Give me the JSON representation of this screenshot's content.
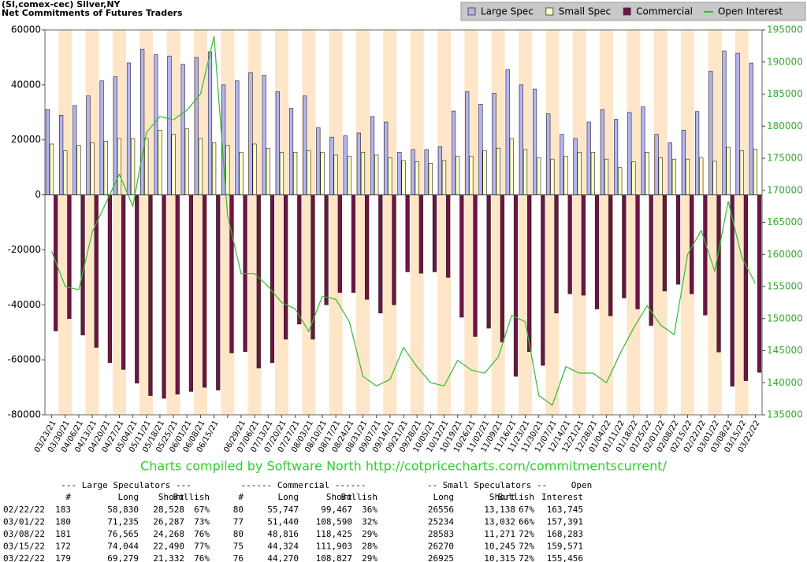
{
  "chart_data": {
    "type": "bar",
    "title": "(SI,comex-cec) Silver,NY",
    "subtitle": "Net Commitments of Futures Traders",
    "footer": "Charts compiled by Software North  http://cotpricecharts.com/commitmentscurrent/",
    "categories": [
      "03/23/21",
      "03/30/21",
      "04/06/21",
      "04/13/21",
      "04/20/21",
      "04/27/21",
      "05/04/21",
      "05/11/21",
      "05/18/21",
      "05/25/21",
      "06/01/21",
      "06/08/21",
      "06/15/21",
      null,
      "06/29/21",
      "07/06/21",
      "07/13/21",
      "07/20/21",
      "07/27/21",
      "08/03/21",
      "08/10/21",
      "08/17/21",
      "08/24/21",
      "08/31/21",
      "09/07/21",
      "09/14/21",
      "09/21/21",
      "09/28/21",
      "10/05/21",
      "10/12/21",
      "10/19/21",
      "10/26/21",
      "11/02/21",
      "11/09/21",
      "11/16/21",
      "11/23/21",
      "11/30/21",
      "12/07/21",
      "12/14/21",
      "12/21/21",
      "12/28/21",
      "01/04/22",
      "01/11/22",
      "01/18/22",
      "01/25/22",
      "02/01/22",
      "02/08/22",
      "02/15/22",
      "02/22/22",
      "03/01/22",
      "03/08/22",
      "03/15/22",
      "03/22/22"
    ],
    "ylim": [
      -80000,
      60000
    ],
    "yticks": [
      -80000,
      -60000,
      -40000,
      -20000,
      0,
      20000,
      40000,
      60000
    ],
    "y2lim": [
      135000,
      195000
    ],
    "y2ticks": [
      135000,
      140000,
      145000,
      150000,
      155000,
      160000,
      165000,
      170000,
      175000,
      180000,
      185000,
      190000,
      195000
    ],
    "legend": "top-right",
    "series": [
      {
        "name": "Large Spec",
        "color": "#b4b4f0",
        "values": [
          31000,
          29000,
          32500,
          36000,
          41500,
          43000,
          48000,
          53000,
          51000,
          50500,
          47500,
          50000,
          52000,
          40000,
          41500,
          44500,
          43500,
          37500,
          31500,
          36000,
          24500,
          21000,
          21500,
          22500,
          28500,
          26500,
          15500,
          16500,
          16500,
          17500,
          30500,
          37500,
          33000,
          37000,
          45500,
          40000,
          38500,
          29500,
          22000,
          20500,
          26500,
          31000,
          27500,
          30000,
          32000,
          22000,
          19000,
          23500,
          30302,
          44948,
          52297,
          51554,
          47947
        ]
      },
      {
        "name": "Small Spec",
        "color": "#ffffc8",
        "values": [
          18500,
          16000,
          18000,
          19000,
          19500,
          20500,
          20500,
          20500,
          23500,
          22000,
          24000,
          20500,
          19000,
          18000,
          15500,
          18500,
          17000,
          15500,
          15500,
          16000,
          15500,
          14500,
          14000,
          15500,
          14500,
          13500,
          12500,
          12000,
          11500,
          12500,
          14000,
          14000,
          16000,
          17000,
          20500,
          16500,
          13500,
          13000,
          14000,
          15500,
          15500,
          13000,
          10000,
          12000,
          15500,
          13500,
          13000,
          13000,
          13418,
          12202,
          17312,
          16025,
          16610
        ]
      },
      {
        "name": "Commercial",
        "color": "#6e1444",
        "values": [
          -49500,
          -45000,
          -51000,
          -55500,
          -61000,
          -63500,
          -68500,
          -73000,
          -74000,
          -72500,
          -71500,
          -70000,
          -71000,
          -57500,
          -57000,
          -63000,
          -61000,
          -52500,
          -47000,
          -52500,
          -40000,
          -35500,
          -35500,
          -38000,
          -43000,
          -40000,
          -28000,
          -28500,
          -28000,
          -30000,
          -44500,
          -51500,
          -48500,
          -53500,
          -66000,
          -57000,
          -62000,
          -43000,
          -36000,
          -36500,
          -41500,
          -44000,
          -37500,
          -41500,
          -47500,
          -35000,
          -32500,
          -36000,
          -43720,
          -57150,
          -69609,
          -67579,
          -64557
        ]
      },
      {
        "name": "Open Interest",
        "color": "#33bb33",
        "axis": "y2",
        "values": [
          160500,
          155000,
          154500,
          163500,
          168000,
          172500,
          167500,
          179000,
          181500,
          181000,
          182500,
          185000,
          194000,
          166000,
          157000,
          157000,
          155000,
          152500,
          151500,
          148000,
          153500,
          153000,
          149500,
          141000,
          139500,
          140500,
          145500,
          142500,
          140000,
          139500,
          143500,
          142000,
          141500,
          144000,
          150500,
          149500,
          138000,
          136500,
          142500,
          141500,
          141500,
          140000,
          144500,
          148500,
          152000,
          149000,
          147500,
          160000,
          163745,
          157391,
          168283,
          159571,
          155456
        ]
      }
    ]
  },
  "table": {
    "header": [
      [
        "--- Large Speculators ---",
        "------ Commercial ------",
        "-- Small Speculators --",
        "Open"
      ],
      [
        "#",
        "Long",
        "Short",
        "Bullish",
        "#",
        "Long",
        "Short",
        "Bullish",
        "Long",
        "Short",
        "Bullish",
        "Interest"
      ]
    ],
    "rows": [
      [
        "02/22/22",
        "183",
        "58,830",
        "28,528",
        "67%",
        "80",
        "55,747",
        "99,467",
        "36%",
        "26556",
        "13,138",
        "67%",
        "163,745"
      ],
      [
        "03/01/22",
        "180",
        "71,235",
        "26,287",
        "73%",
        "77",
        "51,440",
        "108,590",
        "32%",
        "25234",
        "13,032",
        "66%",
        "157,391"
      ],
      [
        "03/08/22",
        "181",
        "76,565",
        "24,268",
        "76%",
        "80",
        "48,816",
        "118,425",
        "29%",
        "28583",
        "11,271",
        "72%",
        "168,283"
      ],
      [
        "03/15/22",
        "172",
        "74,044",
        "22,490",
        "77%",
        "75",
        "44,324",
        "111,903",
        "28%",
        "26270",
        "10,245",
        "72%",
        "159,571"
      ],
      [
        "03/22/22",
        "179",
        "69,279",
        "21,332",
        "76%",
        "76",
        "44,270",
        "108,827",
        "29%",
        "26925",
        "10,315",
        "72%",
        "155,456"
      ]
    ]
  }
}
